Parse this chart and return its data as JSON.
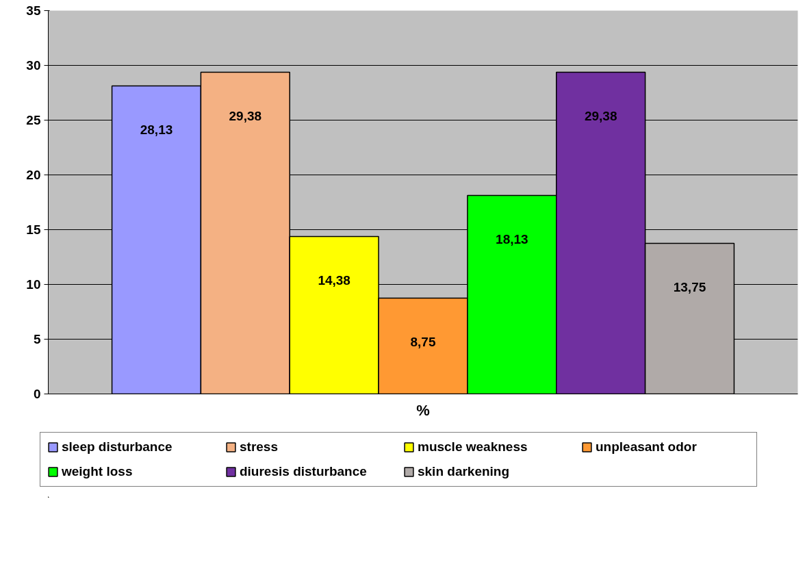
{
  "chart_data": {
    "type": "bar",
    "xlabel": "%",
    "categories": [
      null
    ],
    "ylim": [
      0,
      35
    ],
    "yticks": [
      0,
      5,
      10,
      15,
      20,
      25,
      30,
      35
    ],
    "grid": "y",
    "legend": "bottom",
    "series": [
      {
        "name": "sleep disturbance",
        "color": "#9999ff",
        "values": [
          28.13
        ],
        "value_labels": [
          "28,13"
        ]
      },
      {
        "name": "stress",
        "color": "#f4b183",
        "values": [
          29.38
        ],
        "value_labels": [
          "29,38"
        ]
      },
      {
        "name": "muscle weakness",
        "color": "#ffff00",
        "values": [
          14.38
        ],
        "value_labels": [
          "14,38"
        ]
      },
      {
        "name": "unpleasant odor",
        "color": "#ff9933",
        "values": [
          8.75
        ],
        "value_labels": [
          "8,75"
        ]
      },
      {
        "name": "weight loss",
        "color": "#00ff00",
        "values": [
          18.13
        ],
        "value_labels": [
          "18,13"
        ]
      },
      {
        "name": "diuresis disturbance",
        "color": "#7030a0",
        "values": [
          29.38
        ],
        "value_labels": [
          "29,38"
        ]
      },
      {
        "name": "skin darkening",
        "color": "#b0aaa8",
        "values": [
          13.75
        ],
        "value_labels": [
          "13,75"
        ]
      }
    ]
  }
}
